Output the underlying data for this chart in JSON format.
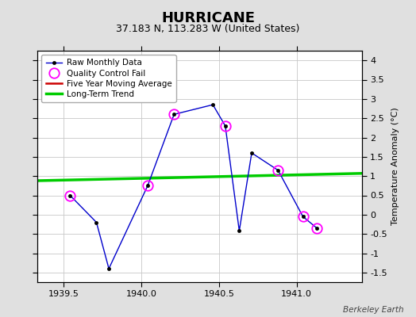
{
  "title": "HURRICANE",
  "subtitle": "37.183 N, 113.283 W (United States)",
  "ylabel": "Temperature Anomaly (°C)",
  "watermark": "Berkeley Earth",
  "ylim": [
    -1.75,
    4.25
  ],
  "xlim": [
    1939.33,
    1941.42
  ],
  "xticks": [
    1939.5,
    1940.0,
    1940.5,
    1941.0
  ],
  "yticks": [
    -1.5,
    -1.0,
    -0.5,
    0.0,
    0.5,
    1.0,
    1.5,
    2.0,
    2.5,
    3.0,
    3.5,
    4.0
  ],
  "raw_x": [
    1939.54,
    1939.71,
    1939.79,
    1940.04,
    1940.21,
    1940.46,
    1940.54,
    1940.63,
    1940.71,
    1940.88,
    1941.04,
    1941.13
  ],
  "raw_y": [
    0.5,
    -0.2,
    -1.4,
    0.75,
    2.6,
    2.85,
    2.3,
    -0.42,
    1.6,
    1.15,
    -0.05,
    -0.35
  ],
  "qc_fail_x": [
    1939.54,
    1940.04,
    1940.21,
    1940.54,
    1940.88,
    1941.04,
    1941.13
  ],
  "qc_fail_y": [
    0.5,
    0.75,
    2.6,
    2.3,
    1.15,
    -0.05,
    -0.35
  ],
  "trend_x": [
    1939.33,
    1941.42
  ],
  "trend_y": [
    0.88,
    1.07
  ],
  "bg_color": "#e0e0e0",
  "plot_bg_color": "#ffffff",
  "raw_line_color": "#0000cc",
  "raw_marker_color": "#000000",
  "qc_color": "#ff00ff",
  "trend_color": "#00cc00",
  "mavg_color": "#cc0000",
  "grid_color": "#c8c8c8",
  "title_fontsize": 13,
  "subtitle_fontsize": 9,
  "tick_fontsize": 8,
  "ylabel_fontsize": 8
}
